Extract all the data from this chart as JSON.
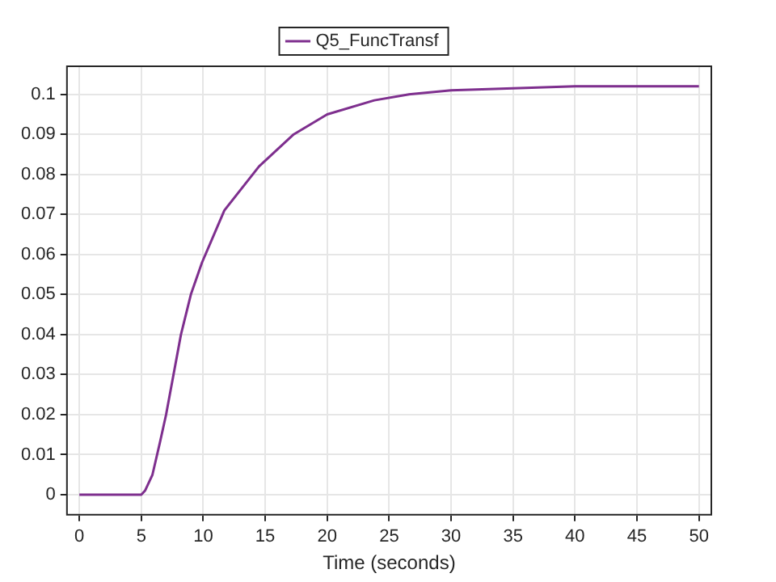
{
  "chart_data": {
    "type": "line",
    "xlabel": "Time (seconds)",
    "x": [
      0,
      5,
      5.3,
      5.9,
      6.5,
      7,
      8.2,
      9,
      9.9,
      11.7,
      14.5,
      17.3,
      20,
      23.8,
      26.6,
      30,
      35,
      40,
      45,
      50
    ],
    "series": [
      {
        "name": "Q5_FuncTransf",
        "color": "#7e2f8e",
        "values": [
          0,
          0,
          0.001,
          0.005,
          0.013,
          0.02,
          0.04,
          0.05,
          0.058,
          0.071,
          0.082,
          0.09,
          0.095,
          0.0985,
          0.1,
          0.101,
          0.1015,
          0.102,
          0.102,
          0.102
        ]
      }
    ],
    "xlim": [
      -1,
      51
    ],
    "xticks": [
      0,
      5,
      10,
      15,
      20,
      25,
      30,
      35,
      40,
      45,
      50
    ],
    "ylim": [
      -0.005,
      0.107
    ],
    "yticks": [
      0,
      0.01,
      0.02,
      0.03,
      0.04,
      0.05,
      0.06,
      0.07,
      0.08,
      0.09,
      0.1
    ],
    "grid": true,
    "legend": "top",
    "marker": "none",
    "line_style": "solid"
  }
}
